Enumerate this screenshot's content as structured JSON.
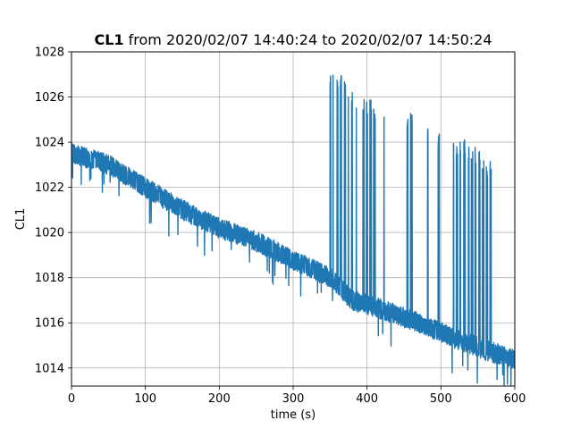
{
  "chart_data": {
    "type": "line",
    "title_bold": "CL1",
    "title_rest": " from 2020/02/07 14:40:24 to 2020/02/07 14:50:24",
    "xlabel": "time (s)",
    "ylabel": "CL1",
    "xlim": [
      0,
      600
    ],
    "ylim": [
      1013.2,
      1028
    ],
    "xticks": [
      0,
      100,
      200,
      300,
      400,
      500,
      600
    ],
    "yticks": [
      1014,
      1016,
      1018,
      1020,
      1022,
      1024,
      1026,
      1028
    ],
    "grid": true,
    "line_color": "#1f77b4",
    "series": [
      {
        "baseline": [
          [
            0,
            1023.5
          ],
          [
            50,
            1023.0
          ],
          [
            100,
            1022.0
          ],
          [
            150,
            1021.0
          ],
          [
            200,
            1020.2
          ],
          [
            250,
            1019.6
          ],
          [
            300,
            1018.8
          ],
          [
            350,
            1018.0
          ],
          [
            380,
            1017.0
          ],
          [
            420,
            1016.6
          ],
          [
            470,
            1016.0
          ],
          [
            520,
            1015.3
          ],
          [
            560,
            1014.8
          ],
          [
            600,
            1014.4
          ]
        ],
        "noise_band": 0.9,
        "spikes": [
          {
            "x": 350,
            "high": 1027.0
          },
          {
            "x": 355,
            "high": 1027.0
          },
          {
            "x": 360,
            "high": 1026.8
          },
          {
            "x": 365,
            "high": 1027.0
          },
          {
            "x": 370,
            "high": 1026.8
          },
          {
            "x": 375,
            "high": 1026.6
          },
          {
            "x": 380,
            "high": 1026.4
          },
          {
            "x": 385,
            "high": 1026.2
          },
          {
            "x": 395,
            "high": 1026.2
          },
          {
            "x": 400,
            "high": 1026.0
          },
          {
            "x": 405,
            "high": 1026.2
          },
          {
            "x": 410,
            "high": 1025.6
          },
          {
            "x": 415,
            "high": 1025.6
          },
          {
            "x": 422,
            "high": 1025.4
          },
          {
            "x": 455,
            "high": 1025.4
          },
          {
            "x": 460,
            "high": 1025.4
          },
          {
            "x": 483,
            "high": 1024.8
          },
          {
            "x": 497,
            "high": 1024.4
          },
          {
            "x": 517,
            "high": 1024.4
          },
          {
            "x": 522,
            "high": 1024.2
          },
          {
            "x": 527,
            "high": 1024.2
          },
          {
            "x": 532,
            "high": 1024.2
          },
          {
            "x": 537,
            "high": 1024.0
          },
          {
            "x": 542,
            "high": 1024.0
          },
          {
            "x": 547,
            "high": 1023.8
          },
          {
            "x": 552,
            "high": 1023.6
          },
          {
            "x": 557,
            "high": 1023.4
          },
          {
            "x": 562,
            "high": 1023.2
          },
          {
            "x": 567,
            "high": 1023.2
          }
        ]
      }
    ]
  }
}
